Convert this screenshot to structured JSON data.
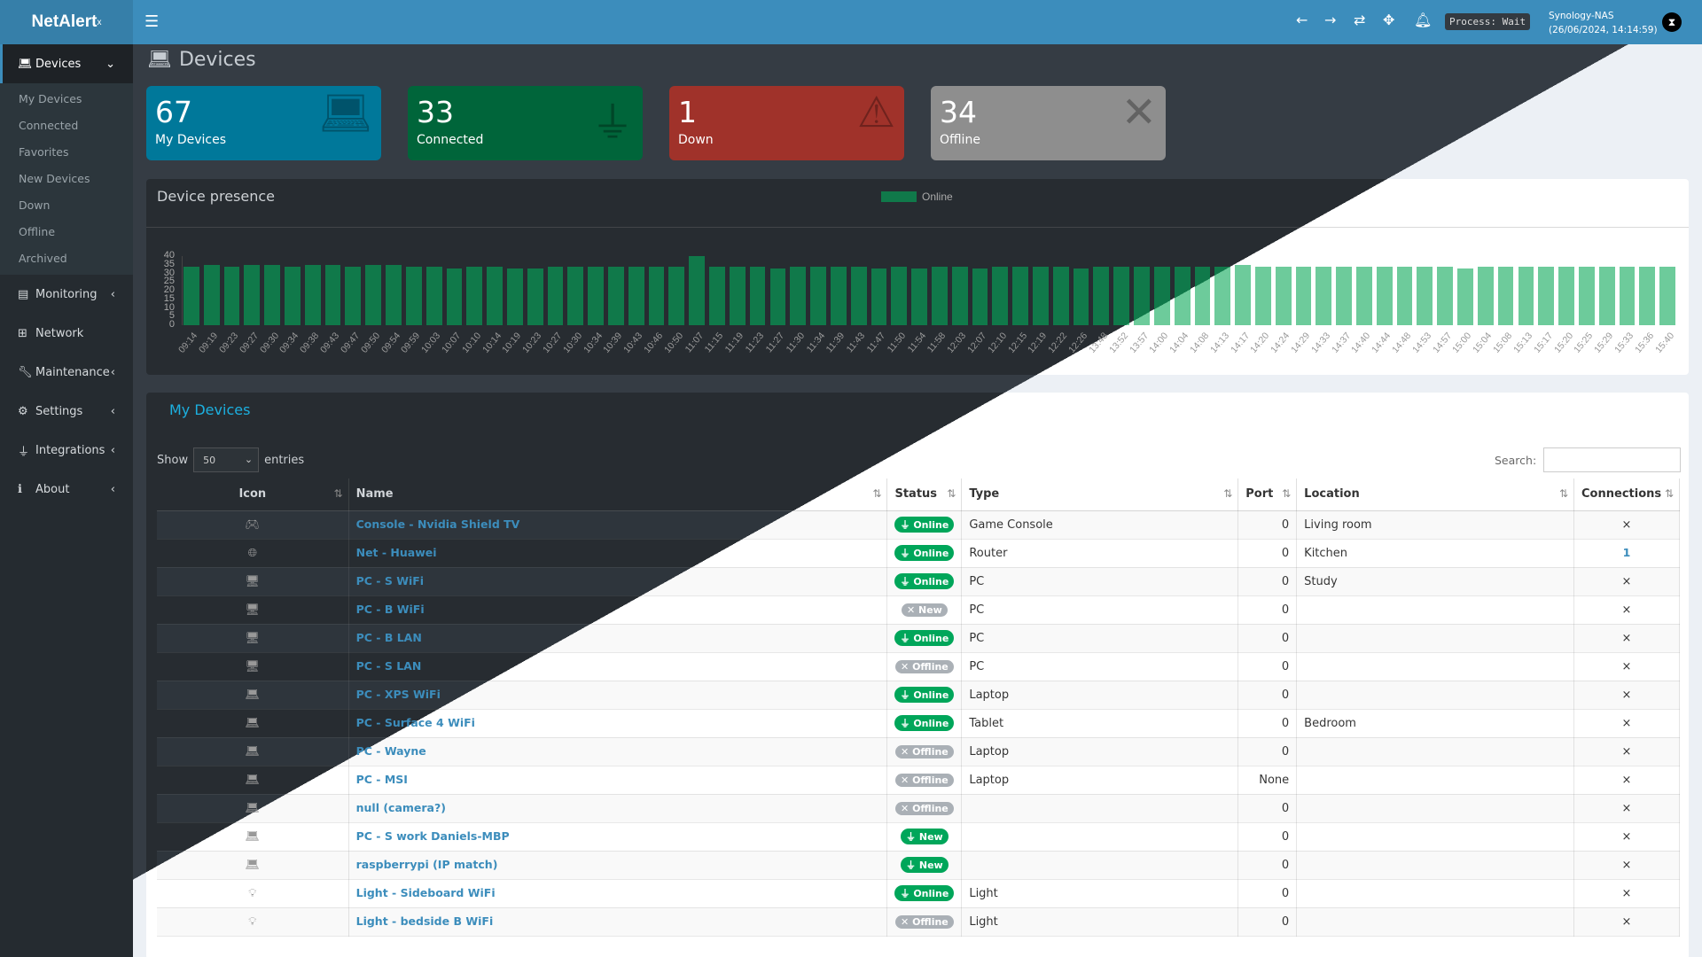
{
  "app": {
    "logo": "NetAlert",
    "logo_sup": "x",
    "process": "Process: Wait",
    "host": "Synology-NAS",
    "datetime": "(26/06/2024, 14:14:59)"
  },
  "header_icons": [
    "menu-icon",
    "arrow-left-icon",
    "arrow-right-icon",
    "refresh-icon",
    "move-icon",
    "bell-icon"
  ],
  "sidebar": {
    "devices": "Devices",
    "sub": [
      "My Devices",
      "Connected",
      "Favorites",
      "New Devices",
      "Down",
      "Offline",
      "Archived"
    ],
    "items": [
      {
        "label": "Monitoring",
        "icon": "chart-icon"
      },
      {
        "label": "Network",
        "icon": "network-icon"
      },
      {
        "label": "Maintenance",
        "icon": "wrench-icon"
      },
      {
        "label": "Settings",
        "icon": "gear-icon"
      },
      {
        "label": "Integrations",
        "icon": "plug-icon"
      },
      {
        "label": "About",
        "icon": "info-icon"
      }
    ]
  },
  "page_title": "Devices",
  "stats": [
    {
      "value": "67",
      "label": "My Devices",
      "color": "#00789a",
      "icon": "laptop-icon"
    },
    {
      "value": "33",
      "label": "Connected",
      "color": "#00653a",
      "icon": "plug-icon"
    },
    {
      "value": "1",
      "label": "Down",
      "color": "#a0322a",
      "icon": "warning-icon"
    },
    {
      "value": "34",
      "label": "Offline",
      "color": "#8e8e8e",
      "icon": "x-icon"
    }
  ],
  "chart_data": {
    "type": "bar",
    "title": "Device presence",
    "series": [
      {
        "name": "Online",
        "color": "#10794a"
      }
    ],
    "yticks": [
      0,
      5,
      10,
      15,
      20,
      25,
      30,
      35,
      40
    ],
    "ylim": [
      0,
      40
    ],
    "legend": "top-center",
    "categories": [
      "09:14",
      "09:19",
      "09:23",
      "09:27",
      "09:30",
      "09:34",
      "09:38",
      "09:43",
      "09:47",
      "09:50",
      "09:54",
      "09:59",
      "10:03",
      "10:07",
      "10:10",
      "10:14",
      "10:19",
      "10:23",
      "10:27",
      "10:30",
      "10:34",
      "10:39",
      "10:43",
      "10:46",
      "10:50",
      "11:07",
      "11:15",
      "11:19",
      "11:23",
      "11:27",
      "11:30",
      "11:34",
      "11:39",
      "11:43",
      "11:47",
      "11:50",
      "11:54",
      "11:58",
      "12:03",
      "12:07",
      "12:10",
      "12:15",
      "12:19",
      "12:22",
      "12:26",
      "13:48",
      "13:52",
      "13:57",
      "14:00",
      "14:04",
      "14:08",
      "14:13",
      "14:17",
      "14:20",
      "14:24",
      "14:29",
      "14:33",
      "14:37",
      "14:40",
      "14:44",
      "14:48",
      "14:53",
      "14:57",
      "15:00",
      "15:04",
      "15:08",
      "15:13",
      "15:17",
      "15:20",
      "15:25",
      "15:29",
      "15:33",
      "15:36",
      "15:40"
    ],
    "values": [
      34,
      35,
      34,
      35,
      35,
      34,
      35,
      35,
      34,
      35,
      35,
      34,
      34,
      33,
      34,
      34,
      33,
      33,
      34,
      34,
      34,
      34,
      34,
      34,
      34,
      40,
      34,
      34,
      34,
      33,
      34,
      34,
      34,
      34,
      33,
      34,
      33,
      34,
      34,
      33,
      34,
      34,
      34,
      34,
      33,
      34,
      34,
      34,
      34,
      34,
      34,
      34,
      35,
      34,
      34,
      34,
      34,
      34,
      34,
      34,
      34,
      34,
      34,
      33,
      34,
      34,
      34,
      34,
      34,
      34,
      34,
      34,
      34,
      34
    ]
  },
  "panel": {
    "title": "My Devices",
    "show": "Show",
    "entries_value": "50",
    "entries": "entries",
    "search": "Search:"
  },
  "table": {
    "headers": [
      "Icon",
      "Name",
      "Status",
      "Type",
      "Port",
      "Location",
      "Connections"
    ],
    "rows": [
      {
        "icon": "gamepad-icon",
        "name": "Console - Nvidia Shield TV",
        "status": "Online",
        "type": "Game Console",
        "port": "0",
        "location": "Living room",
        "conn": "×"
      },
      {
        "icon": "globe-icon",
        "name": "Net - Huawei",
        "status": "Online",
        "type": "Router",
        "port": "0",
        "location": "Kitchen",
        "conn": "1"
      },
      {
        "icon": "desktop-icon",
        "name": "PC - S WiFi",
        "status": "Online",
        "type": "PC",
        "port": "0",
        "location": "Study",
        "conn": "×"
      },
      {
        "icon": "desktop-icon",
        "name": "PC - B WiFi",
        "status": "New",
        "type": "PC",
        "port": "0",
        "location": "",
        "conn": "×"
      },
      {
        "icon": "desktop-icon",
        "name": "PC - B LAN",
        "status": "Online",
        "type": "PC",
        "port": "0",
        "location": "",
        "conn": "×"
      },
      {
        "icon": "desktop-icon",
        "name": "PC - S LAN",
        "status": "Offline",
        "type": "PC",
        "port": "0",
        "location": "",
        "conn": "×"
      },
      {
        "icon": "laptop-icon",
        "name": "PC - XPS WiFi",
        "status": "Online",
        "type": "Laptop",
        "port": "0",
        "location": "",
        "conn": "×"
      },
      {
        "icon": "laptop-icon",
        "name": "PC - Surface 4 WiFi",
        "status": "Online",
        "type": "Tablet",
        "port": "0",
        "location": "Bedroom",
        "conn": "×"
      },
      {
        "icon": "laptop-icon",
        "name": "PC - Wayne",
        "status": "Offline",
        "type": "Laptop",
        "port": "0",
        "location": "",
        "conn": "×"
      },
      {
        "icon": "laptop-icon",
        "name": "PC - MSI",
        "status": "Offline",
        "type": "Laptop",
        "port": "None",
        "location": "",
        "conn": "×"
      },
      {
        "icon": "laptop-icon",
        "name": "null (camera?)",
        "status": "Offline",
        "type": "",
        "port": "0",
        "location": "",
        "conn": "×"
      },
      {
        "icon": "laptop-icon",
        "name": "PC - S work Daniels-MBP",
        "status": "New",
        "type": "",
        "port": "0",
        "location": "",
        "conn": "×"
      },
      {
        "icon": "laptop-icon",
        "name": "raspberrypi (IP match)",
        "status": "New",
        "type": "",
        "port": "0",
        "location": "",
        "conn": "×"
      },
      {
        "icon": "bulb-icon",
        "name": "Light - Sideboard WiFi",
        "status": "Online",
        "type": "Light",
        "port": "0",
        "location": "",
        "conn": "×"
      },
      {
        "icon": "bulb-icon",
        "name": "Light - bedside B WiFi",
        "status": "Offline",
        "type": "Light",
        "port": "0",
        "location": "",
        "conn": "×"
      }
    ],
    "status_style": {
      "Online": {
        "color": "#00a65a",
        "icon": "plug-icon"
      },
      "Offline": {
        "color": "#aab0b6",
        "icon": "x-icon"
      },
      "New": {
        "color": "#00a65a",
        "icon": "plug-icon"
      }
    }
  }
}
